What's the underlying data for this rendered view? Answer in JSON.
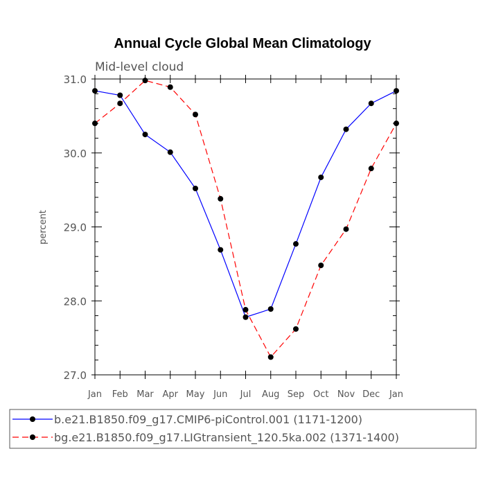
{
  "chart_data": {
    "type": "line",
    "title": "Annual Cycle Global Mean Climatology",
    "subtitle": "Mid-level cloud",
    "xlabel": "",
    "ylabel": "percent",
    "categories": [
      "Jan",
      "Feb",
      "Mar",
      "Apr",
      "May",
      "Jun",
      "Jul",
      "Aug",
      "Sep",
      "Oct",
      "Nov",
      "Dec",
      "Jan"
    ],
    "ylim": [
      27.0,
      31.0
    ],
    "y_ticks": [
      "27.0",
      "28.0",
      "29.0",
      "30.0",
      "31.0"
    ],
    "series": [
      {
        "name": "b.e21.B1850.f09_g17.CMIP6-piControl.001 (1171-1200)",
        "color": "#0000ff",
        "dash": "solid",
        "values": [
          30.84,
          30.78,
          30.25,
          30.01,
          29.52,
          28.69,
          27.78,
          27.89,
          28.77,
          29.67,
          30.32,
          30.67,
          30.84
        ]
      },
      {
        "name": "bg.e21.B1850.f09_g17.LIGtransient_120.5ka.002 (1371-1400)",
        "color": "#ff0000",
        "dash": "dashed",
        "values": [
          30.4,
          30.67,
          30.98,
          30.89,
          30.52,
          29.38,
          27.88,
          27.24,
          27.62,
          28.48,
          28.97,
          29.79,
          30.4
        ]
      }
    ]
  }
}
